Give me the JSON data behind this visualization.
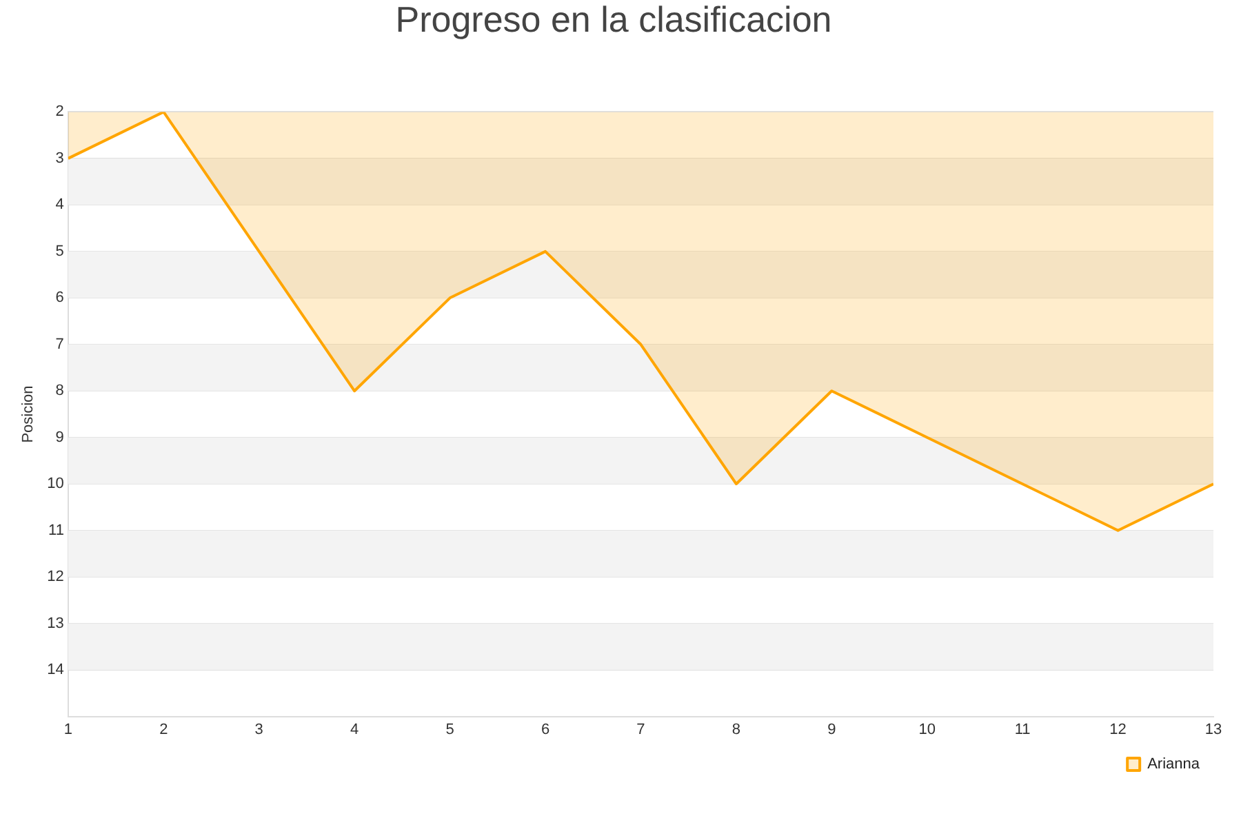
{
  "chart_data": {
    "type": "area",
    "title": "Progreso en la clasificacion",
    "ylabel": "Posicion",
    "x": [
      1,
      2,
      3,
      4,
      5,
      6,
      7,
      8,
      9,
      10,
      11,
      12,
      13
    ],
    "series": [
      {
        "name": "Arianna",
        "color": "#ffa500",
        "values": [
          3,
          2,
          5,
          8,
          6,
          5,
          7,
          10,
          8,
          9,
          10,
          11,
          10
        ]
      }
    ],
    "xlim": [
      1,
      13
    ],
    "xticks": [
      1,
      2,
      3,
      4,
      5,
      6,
      7,
      8,
      9,
      10,
      11,
      12,
      13
    ],
    "ylim": [
      15,
      2
    ],
    "yticks": [
      2,
      3,
      4,
      5,
      6,
      7,
      8,
      9,
      10,
      11,
      12,
      13,
      14
    ],
    "bands": [
      {
        "axis": "y",
        "from": 3,
        "to": 4,
        "color": "#f3f3f3"
      },
      {
        "axis": "y",
        "from": 5,
        "to": 6,
        "color": "#f3f3f3"
      },
      {
        "axis": "y",
        "from": 7,
        "to": 8,
        "color": "#f3f3f3"
      },
      {
        "axis": "y",
        "from": 9,
        "to": 10,
        "color": "#f3f3f3"
      },
      {
        "axis": "y",
        "from": 11,
        "to": 12,
        "color": "#f3f3f3"
      },
      {
        "axis": "y",
        "from": 13,
        "to": 14,
        "color": "#f3f3f3"
      }
    ],
    "grid": "y",
    "legend": "bottom right",
    "marker": "none",
    "line_style": "solid"
  }
}
